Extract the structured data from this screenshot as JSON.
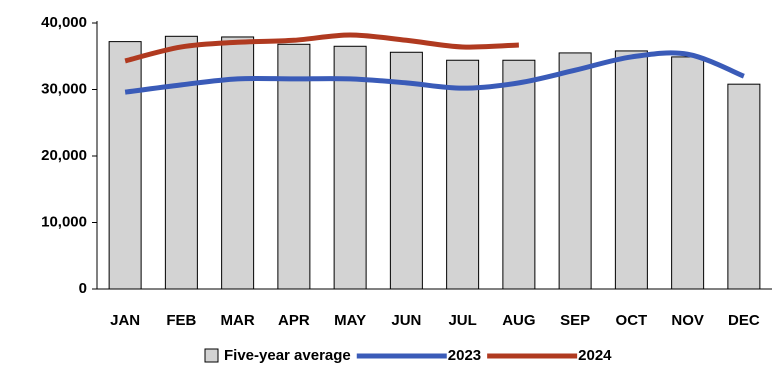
{
  "chart_data": {
    "type": "bar_line",
    "categories": [
      "JAN",
      "FEB",
      "MAR",
      "APR",
      "MAY",
      "JUN",
      "JUL",
      "AUG",
      "SEP",
      "OCT",
      "NOV",
      "DEC"
    ],
    "series": [
      {
        "name": "Five-year average",
        "type": "bar",
        "color": "#d3d3d3",
        "values": [
          37200,
          38000,
          37900,
          36800,
          36500,
          35600,
          34400,
          34400,
          35500,
          35800,
          34900,
          30800
        ]
      },
      {
        "name": "2023",
        "type": "line",
        "color": "#3a5bb8",
        "values": [
          29600,
          30700,
          31600,
          31600,
          31600,
          31000,
          30200,
          31000,
          32900,
          34900,
          35300,
          32000
        ]
      },
      {
        "name": "2024",
        "type": "line",
        "color": "#b03a20",
        "values": [
          34300,
          36400,
          37100,
          37400,
          38200,
          37400,
          36400,
          36700,
          null,
          null,
          null,
          null
        ]
      }
    ],
    "ylim": [
      0,
      40000
    ],
    "yticks": [
      0,
      {
        "value": 10000,
        "label": "10,000"
      },
      {
        "value": 20000,
        "label": "20,000"
      },
      {
        "value": 30000,
        "label": "30,000"
      },
      {
        "value": 40000,
        "label": "40,000"
      }
    ],
    "grid": false,
    "legend": "bottom"
  }
}
